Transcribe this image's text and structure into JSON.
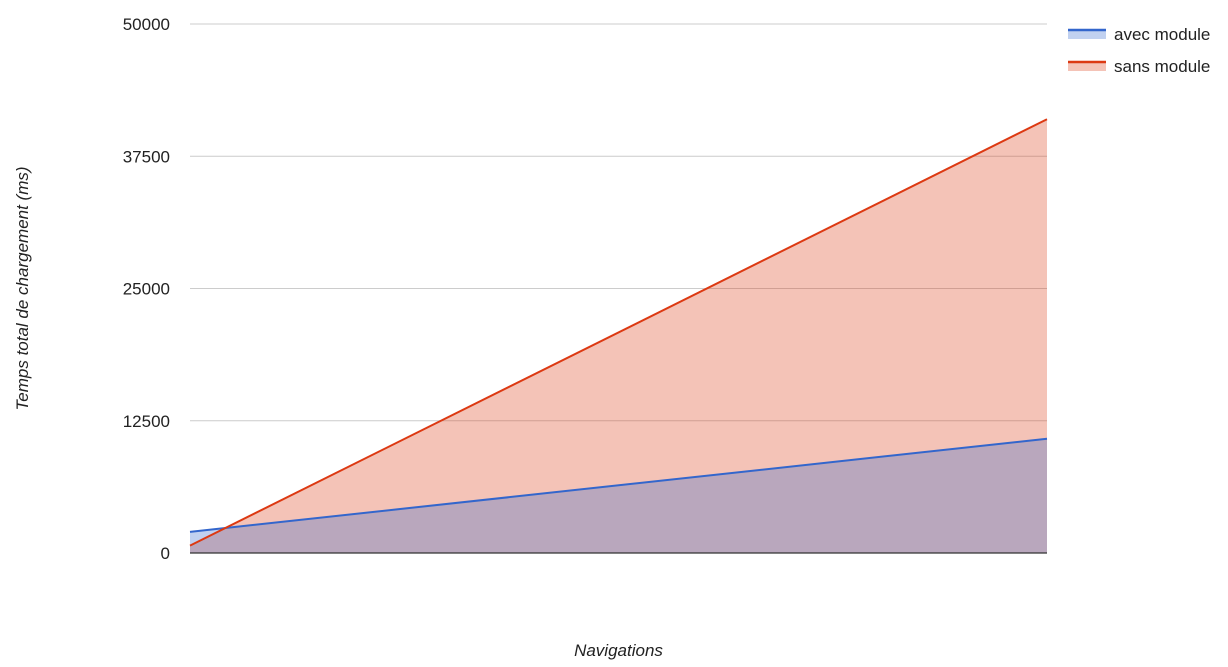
{
  "chart_data": {
    "type": "area",
    "title": "",
    "xlabel": "Navigations",
    "ylabel": "Temps total de chargement (ms)",
    "x": [
      0,
      1
    ],
    "xlim": [
      0,
      1
    ],
    "ylim": [
      0,
      50000
    ],
    "yticks": [
      "0",
      "12500",
      "25000",
      "37500",
      "50000"
    ],
    "ytick_values": [
      0,
      12500,
      25000,
      37500,
      50000
    ],
    "grid": true,
    "legend_position": "top-right",
    "series": [
      {
        "name": "avec module",
        "values": [
          2000,
          10800
        ],
        "color": "#3366cc",
        "fill": "#3366cc"
      },
      {
        "name": "sans module",
        "values": [
          700,
          41000
        ],
        "color": "#dc3912",
        "fill": "#dc3912"
      }
    ]
  }
}
